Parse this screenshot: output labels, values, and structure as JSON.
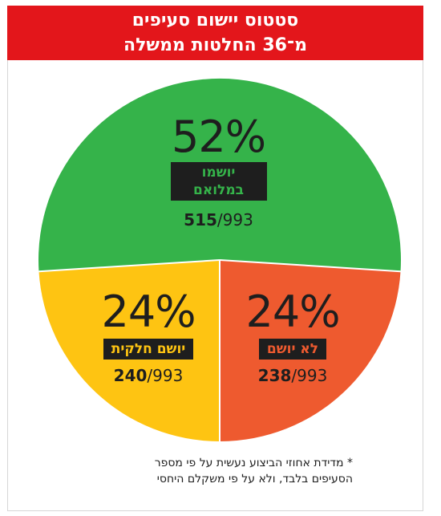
{
  "header": {
    "title_line1": "סטטוס יישום סעיפים",
    "title_line2": "מ־36 החלטות ממשלה",
    "background": "#e3161b"
  },
  "chart_data": {
    "type": "pie",
    "title": "סטטוס יישום סעיפים מ־36 החלטות ממשלה",
    "total": 993,
    "slices": [
      {
        "label": "יושמו במלואם",
        "label_lines": [
          "יושמו",
          "במלואם"
        ],
        "percent": "52%",
        "count": 515,
        "total_text": "993",
        "value": 52,
        "color": "#35b34a",
        "tag_text_color": "#35b34a"
      },
      {
        "label": "לא יושם",
        "percent": "24%",
        "count": 238,
        "total_text": "993",
        "value": 24,
        "color": "#ee5a2f",
        "tag_text_color": "#ee5a2f"
      },
      {
        "label": "יושם חלקית",
        "percent": "24%",
        "count": 240,
        "total_text": "993",
        "value": 24,
        "color": "#fec412",
        "tag_text_color": "#fec412"
      }
    ]
  },
  "footnote": {
    "line1": "* מדידת אחוזי הביצוע נעשית על פי מספר",
    "line2": "הסעיפים בלבד, ולא על פי משקלם היחסי"
  }
}
